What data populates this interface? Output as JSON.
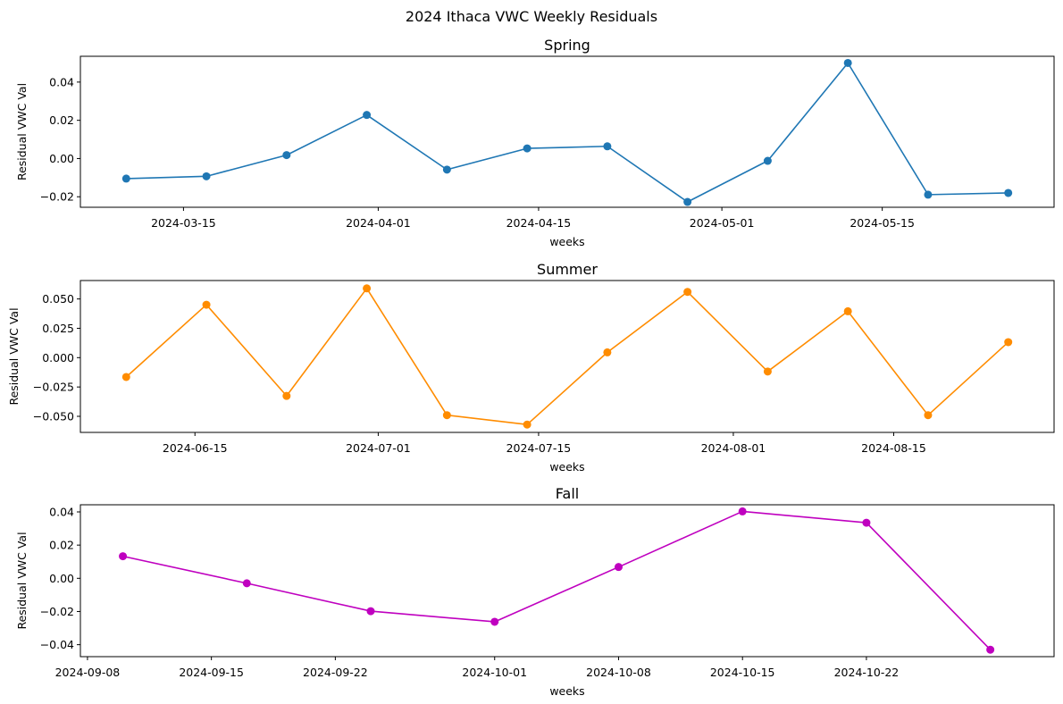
{
  "chart_data": {
    "suptitle": "2024 Ithaca VWC Weekly Residuals",
    "panels": [
      {
        "type": "line",
        "title": "Spring",
        "xlabel": "weeks",
        "ylabel": "Residual VWC Val",
        "color": "#1f77b4",
        "marker": "circle",
        "x": [
          "2024-03-10",
          "2024-03-17",
          "2024-03-24",
          "2024-03-31",
          "2024-04-07",
          "2024-04-14",
          "2024-04-21",
          "2024-04-28",
          "2024-05-05",
          "2024-05-12",
          "2024-05-19",
          "2024-05-26"
        ],
        "y": [
          -0.0105,
          -0.0093,
          0.0018,
          0.0228,
          -0.0058,
          0.0053,
          0.0064,
          -0.0227,
          -0.0012,
          0.05,
          -0.0189,
          -0.018
        ],
        "xlim": [
          "2024-03-06",
          "2024-05-30"
        ],
        "ylim": [
          -0.0255,
          0.0535
        ],
        "xticks": [
          "2024-03-15",
          "2024-04-01",
          "2024-04-15",
          "2024-05-01",
          "2024-05-15"
        ],
        "yticks": [
          -0.02,
          0.0,
          0.02,
          0.04
        ],
        "ytick_labels": [
          "−0.02",
          "0.00",
          "0.02",
          "0.04"
        ],
        "grid": false
      },
      {
        "type": "line",
        "title": "Summer",
        "xlabel": "weeks",
        "ylabel": "Residual VWC Val",
        "color": "#ff8c00",
        "marker": "circle",
        "x": [
          "2024-06-09",
          "2024-06-16",
          "2024-06-23",
          "2024-06-30",
          "2024-07-07",
          "2024-07-14",
          "2024-07-21",
          "2024-07-28",
          "2024-08-04",
          "2024-08-11",
          "2024-08-18",
          "2024-08-25"
        ],
        "y": [
          -0.0165,
          0.0451,
          -0.0326,
          0.059,
          -0.049,
          -0.057,
          0.0045,
          0.056,
          -0.0118,
          0.0395,
          -0.049,
          0.0132
        ],
        "xlim": [
          "2024-06-05",
          "2024-08-29"
        ],
        "ylim": [
          -0.0637,
          0.0657
        ],
        "xticks": [
          "2024-06-15",
          "2024-07-01",
          "2024-07-15",
          "2024-08-01",
          "2024-08-15"
        ],
        "yticks": [
          -0.05,
          -0.025,
          0.0,
          0.025,
          0.05
        ],
        "ytick_labels": [
          "−0.050",
          "−0.025",
          "0.000",
          "0.025",
          "0.050"
        ],
        "grid": false
      },
      {
        "type": "line",
        "title": "Fall",
        "xlabel": "weeks",
        "ylabel": "Residual VWC Val",
        "color": "#bf00bf",
        "marker": "circle",
        "x": [
          "2024-09-10",
          "2024-09-17",
          "2024-09-24",
          "2024-10-01",
          "2024-10-08",
          "2024-10-15",
          "2024-10-22",
          "2024-10-29"
        ],
        "y": [
          0.0133,
          -0.003,
          -0.0198,
          -0.0262,
          0.0068,
          0.0403,
          0.0335,
          -0.043
        ],
        "xlim": [
          "2024-09-07.6",
          "2024-11-01.6"
        ],
        "ylim": [
          -0.0472,
          0.0443
        ],
        "xticks": [
          "2024-09-08",
          "2024-09-15",
          "2024-09-22",
          "2024-10-01",
          "2024-10-08",
          "2024-10-15",
          "2024-10-22"
        ],
        "yticks": [
          -0.04,
          -0.02,
          0.0,
          0.02,
          0.04
        ],
        "ytick_labels": [
          "−0.04",
          "−0.02",
          "0.00",
          "0.02",
          "0.04"
        ],
        "grid": false
      }
    ]
  }
}
